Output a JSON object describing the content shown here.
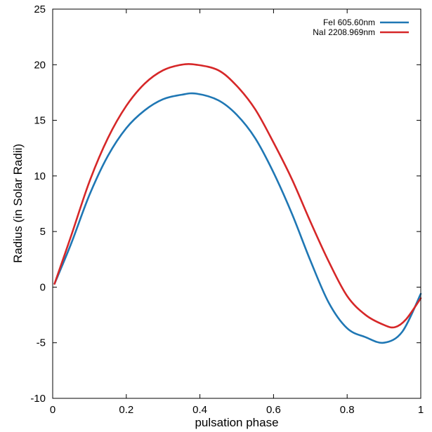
{
  "chart_data": {
    "type": "line",
    "title": "",
    "xlabel": "pulsation phase",
    "ylabel": "Radius (in Solar Radii)",
    "xlim": [
      0,
      1
    ],
    "ylim": [
      -10,
      25
    ],
    "xticks": [
      0,
      0.2,
      0.4,
      0.6,
      0.8,
      1
    ],
    "xtick_labels": [
      "0",
      "0.2",
      "0.4",
      "0.6",
      "0.8",
      "1"
    ],
    "yticks": [
      -10,
      -5,
      0,
      5,
      10,
      15,
      20,
      25
    ],
    "ytick_labels": [
      "-10",
      "-5",
      "0",
      "5",
      "10",
      "15",
      "20",
      "25"
    ],
    "grid": false,
    "legend_position": "top-right",
    "series": [
      {
        "name": "FeI 605.60nm",
        "color": "#1f77b4",
        "x": [
          0.005,
          0.05,
          0.1,
          0.15,
          0.2,
          0.25,
          0.3,
          0.35,
          0.39,
          0.45,
          0.5,
          0.55,
          0.6,
          0.65,
          0.7,
          0.75,
          0.8,
          0.85,
          0.9,
          0.95,
          1.0
        ],
        "y": [
          0.3,
          3.9,
          8.3,
          11.8,
          14.3,
          15.9,
          16.9,
          17.3,
          17.4,
          16.8,
          15.5,
          13.4,
          10.3,
          6.6,
          2.4,
          -1.4,
          -3.7,
          -4.5,
          -5.0,
          -4.0,
          -0.6
        ]
      },
      {
        "name": "NaI 2208.969nm",
        "color": "#d62728",
        "x": [
          0.005,
          0.05,
          0.1,
          0.15,
          0.2,
          0.25,
          0.3,
          0.35,
          0.39,
          0.45,
          0.5,
          0.55,
          0.6,
          0.65,
          0.7,
          0.75,
          0.8,
          0.85,
          0.9,
          0.93,
          0.96,
          1.0
        ],
        "y": [
          0.3,
          4.6,
          9.5,
          13.4,
          16.3,
          18.3,
          19.5,
          20.0,
          20.0,
          19.5,
          18.1,
          16.0,
          13.0,
          9.7,
          5.9,
          2.3,
          -0.8,
          -2.5,
          -3.4,
          -3.6,
          -2.9,
          -1.0
        ]
      }
    ]
  }
}
